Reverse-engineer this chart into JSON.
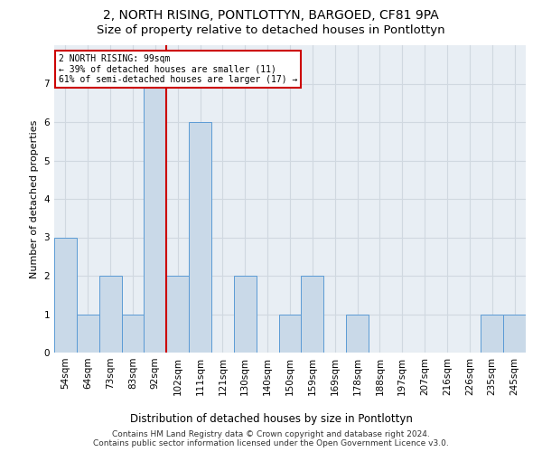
{
  "title": "2, NORTH RISING, PONTLOTTYN, BARGOED, CF81 9PA",
  "subtitle": "Size of property relative to detached houses in Pontlottyn",
  "xlabel": "Distribution of detached houses by size in Pontlottyn",
  "ylabel": "Number of detached properties",
  "categories": [
    "54sqm",
    "64sqm",
    "73sqm",
    "83sqm",
    "92sqm",
    "102sqm",
    "111sqm",
    "121sqm",
    "130sqm",
    "140sqm",
    "150sqm",
    "159sqm",
    "169sqm",
    "178sqm",
    "188sqm",
    "197sqm",
    "207sqm",
    "216sqm",
    "226sqm",
    "235sqm",
    "245sqm"
  ],
  "values": [
    3,
    1,
    2,
    1,
    7,
    2,
    6,
    0,
    2,
    0,
    1,
    2,
    0,
    1,
    0,
    0,
    0,
    0,
    0,
    1,
    1
  ],
  "bar_color": "#c9d9e8",
  "bar_edge_color": "#5b9bd5",
  "property_line_x": 4.5,
  "property_label": "2 NORTH RISING: 99sqm",
  "annotation_line1": "← 39% of detached houses are smaller (11)",
  "annotation_line2": "61% of semi-detached houses are larger (17) →",
  "annotation_box_color": "#ffffff",
  "annotation_box_edge": "#cc0000",
  "property_line_color": "#cc0000",
  "ylim": [
    0,
    8
  ],
  "yticks": [
    0,
    1,
    2,
    3,
    4,
    5,
    6,
    7
  ],
  "grid_color": "#d0d8e0",
  "background_color": "#e8eef4",
  "fig_background": "#ffffff",
  "footer_line1": "Contains HM Land Registry data © Crown copyright and database right 2024.",
  "footer_line2": "Contains public sector information licensed under the Open Government Licence v3.0.",
  "title_fontsize": 10,
  "subtitle_fontsize": 9.5,
  "xlabel_fontsize": 8.5,
  "ylabel_fontsize": 8,
  "tick_fontsize": 7.5,
  "footer_fontsize": 6.5
}
